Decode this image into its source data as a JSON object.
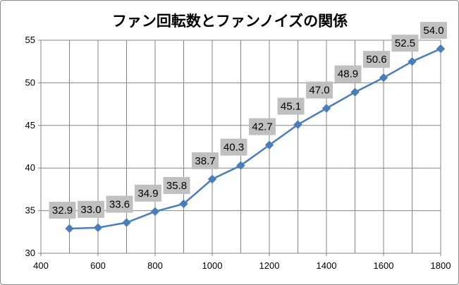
{
  "chart_data": {
    "type": "line",
    "title": "ファン回転数とファンノイズの関係",
    "xlabel": "",
    "ylabel": "",
    "x": [
      500,
      600,
      700,
      800,
      900,
      1000,
      1100,
      1200,
      1300,
      1400,
      1500,
      1600,
      1700,
      1800
    ],
    "xlim": [
      400,
      1800
    ],
    "ylim": [
      30,
      55
    ],
    "x_ticks": [
      400,
      600,
      800,
      1000,
      1200,
      1400,
      1600,
      1800
    ],
    "y_ticks": [
      30,
      35,
      40,
      45,
      50,
      55
    ],
    "series": [
      {
        "values": [
          32.9,
          33.0,
          33.6,
          34.9,
          35.8,
          38.7,
          40.3,
          42.7,
          45.1,
          47.0,
          48.9,
          50.6,
          52.5,
          54.0
        ],
        "data_labels": [
          "32.9",
          "33.0",
          "33.6",
          "34.9",
          "35.8",
          "38.7",
          "40.3",
          "42.7",
          "45.1",
          "47.0",
          "48.9",
          "50.6",
          "52.5",
          "54.0"
        ],
        "color": "#4a7ebb",
        "marker": "diamond"
      }
    ],
    "grid": true,
    "legend": "none",
    "label_background": "#c0c0c0",
    "gridline_color": "#868686"
  }
}
